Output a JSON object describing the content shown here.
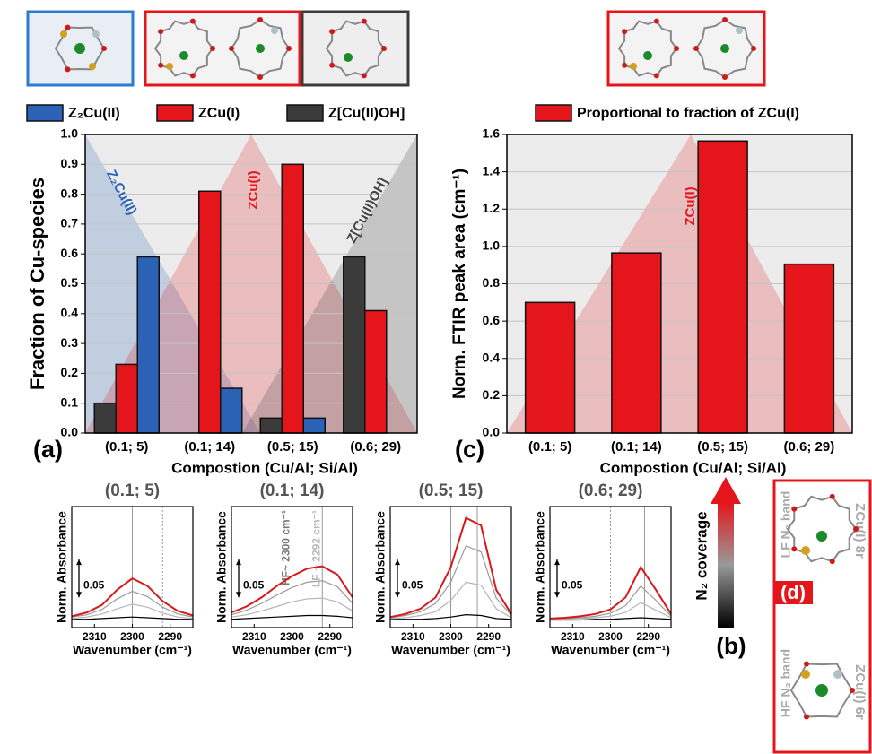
{
  "chart_data": [
    {
      "type": "bar",
      "panel_label": "(a)",
      "x_label": "Compostion (Cu/Al; Si/Al)",
      "y_label": "Fraction of Cu-species",
      "categories": [
        "(0.1; 5)",
        "(0.1; 14)",
        "(0.5; 15)",
        "(0.6; 29)"
      ],
      "series": [
        {
          "name": "Z₂Cu(II)",
          "color": "#2b62b5",
          "values": [
            0.59,
            0.15,
            0.05,
            null
          ]
        },
        {
          "name": "ZCu(I)",
          "color": "#e4151b",
          "values": [
            0.23,
            0.81,
            0.9,
            0.41
          ]
        },
        {
          "name": "Z[Cu(II)OH]",
          "color": "#3b3b3b",
          "values": [
            0.1,
            null,
            0.05,
            0.59
          ]
        }
      ],
      "annotations": [
        "Z₂Cu(II)",
        "ZCu(I)",
        "Z[Cu(II)OH]"
      ],
      "ylim": [
        0,
        1
      ],
      "yticks": [
        {
          "value": 0,
          "label": "0.0"
        },
        0.1,
        0.2,
        0.3,
        0.4,
        0.5,
        0.6,
        0.7,
        0.8,
        0.9,
        {
          "value": 1,
          "label": "1.0"
        }
      ],
      "grid": true
    },
    {
      "type": "bar",
      "panel_label": "(c)",
      "x_label": "Compostion (Cu/Al; Si/Al)",
      "y_label": "Norm. FTIR peak area (cm⁻¹)",
      "categories": [
        "(0.1; 5)",
        "(0.1; 14)",
        "(0.5; 15)",
        "(0.6; 29)"
      ],
      "series": [
        {
          "name": "Proportional to fraction of ZCu(I)",
          "color": "#e4151b",
          "values": [
            0.7,
            0.965,
            1.565,
            0.905
          ]
        }
      ],
      "annotations": [
        "ZCu(I)"
      ],
      "ylim": [
        0,
        1.6
      ],
      "yticks": [
        {
          "value": 0,
          "label": "0.0"
        },
        0.2,
        0.4,
        0.6,
        0.8,
        {
          "value": 1,
          "label": "1.0"
        },
        1.2,
        1.4,
        1.6
      ],
      "grid": true
    },
    {
      "type": "line",
      "title": "(0.1; 5)",
      "x_label": "Wavenumber (cm⁻¹)",
      "y_label": "Norm. Absorbance",
      "scale_bar": 0.05,
      "x": [
        2316,
        2312,
        2308,
        2304,
        2300,
        2296,
        2292,
        2288,
        2284
      ],
      "xlim": [
        2316,
        2284
      ],
      "xticks": [
        2310,
        2300,
        2290
      ],
      "ylim": [
        -0.01,
        0.15
      ],
      "vlines": [
        {
          "x": 2300,
          "style": "solid"
        },
        {
          "x": 2292,
          "style": "dotted"
        }
      ],
      "series": [
        {
          "color": "#d7191c",
          "values": [
            0.005,
            0.01,
            0.02,
            0.04,
            0.055,
            0.045,
            0.025,
            0.012,
            0.006
          ]
        },
        {
          "color": "#9a9a9a",
          "values": [
            0.004,
            0.007,
            0.014,
            0.028,
            0.038,
            0.031,
            0.017,
            0.008,
            0.004
          ]
        },
        {
          "color": "#b5b5b5",
          "values": [
            0.002,
            0.004,
            0.008,
            0.015,
            0.021,
            0.017,
            0.009,
            0.004,
            0.002
          ]
        },
        {
          "color": "#000000",
          "values": [
            0.001,
            0.001,
            0.002,
            0.003,
            0.004,
            0.003,
            0.002,
            0.001,
            0.001
          ]
        }
      ]
    },
    {
      "type": "line",
      "title": "(0.1; 14)",
      "x_label": "Wavenumber (cm⁻¹)",
      "y_label": "Norm. Absorbance",
      "scale_bar": 0.05,
      "x": [
        2316,
        2312,
        2308,
        2304,
        2300,
        2296,
        2292,
        2288,
        2284
      ],
      "xlim": [
        2316,
        2284
      ],
      "xticks": [
        2310,
        2300,
        2290
      ],
      "ylim": [
        -0.01,
        0.15
      ],
      "vlines": [
        {
          "x": 2300,
          "style": "solid",
          "label": "HF~ 2300 cm⁻¹"
        },
        {
          "x": 2292,
          "style": "solid",
          "label": "LF ~ 2292 cm⁻¹"
        }
      ],
      "series": [
        {
          "color": "#d7191c",
          "values": [
            0.01,
            0.018,
            0.03,
            0.045,
            0.058,
            0.068,
            0.071,
            0.06,
            0.03
          ]
        },
        {
          "color": "#9a9a9a",
          "values": [
            0.007,
            0.013,
            0.022,
            0.033,
            0.043,
            0.05,
            0.052,
            0.044,
            0.022
          ]
        },
        {
          "color": "#b5b5b5",
          "values": [
            0.004,
            0.007,
            0.012,
            0.018,
            0.024,
            0.028,
            0.029,
            0.024,
            0.012
          ]
        },
        {
          "color": "#000000",
          "values": [
            0.001,
            0.002,
            0.003,
            0.004,
            0.005,
            0.006,
            0.006,
            0.005,
            0.003
          ]
        }
      ]
    },
    {
      "type": "line",
      "title": "(0.5; 15)",
      "x_label": "Wavenumber (cm⁻¹)",
      "y_label": "Norm. Absorbance",
      "scale_bar": 0.05,
      "x": [
        2316,
        2312,
        2308,
        2304,
        2300,
        2296,
        2292,
        2288,
        2284
      ],
      "xlim": [
        2316,
        2284
      ],
      "xticks": [
        2310,
        2300,
        2290
      ],
      "ylim": [
        -0.01,
        0.15
      ],
      "vlines": [
        {
          "x": 2300,
          "style": "solid"
        },
        {
          "x": 2293,
          "style": "solid"
        }
      ],
      "series": [
        {
          "color": "#d7191c",
          "values": [
            0.004,
            0.008,
            0.015,
            0.03,
            0.07,
            0.135,
            0.125,
            0.04,
            0.008
          ]
        },
        {
          "color": "#9a9a9a",
          "values": [
            0.003,
            0.006,
            0.011,
            0.022,
            0.05,
            0.098,
            0.09,
            0.029,
            0.006
          ]
        },
        {
          "color": "#b5b5b5",
          "values": [
            0.002,
            0.003,
            0.006,
            0.011,
            0.026,
            0.05,
            0.046,
            0.015,
            0.003
          ]
        },
        {
          "color": "#000000",
          "values": [
            0.001,
            0.001,
            0.001,
            0.002,
            0.004,
            0.007,
            0.006,
            0.002,
            0.001
          ]
        }
      ]
    },
    {
      "type": "line",
      "title": "(0.6; 29)",
      "x_label": "Wavenumber (cm⁻¹)",
      "y_label": "Norm. Absorbance",
      "scale_bar": 0.05,
      "x": [
        2316,
        2312,
        2308,
        2304,
        2300,
        2296,
        2292,
        2288,
        2284
      ],
      "xlim": [
        2316,
        2284
      ],
      "xticks": [
        2310,
        2300,
        2290
      ],
      "ylim": [
        -0.01,
        0.15
      ],
      "vlines": [
        {
          "x": 2300,
          "style": "dotted"
        },
        {
          "x": 2291,
          "style": "solid"
        }
      ],
      "series": [
        {
          "color": "#d7191c",
          "values": [
            0.002,
            0.003,
            0.005,
            0.008,
            0.014,
            0.03,
            0.07,
            0.04,
            0.008
          ]
        },
        {
          "color": "#9a9a9a",
          "values": [
            0.001,
            0.002,
            0.003,
            0.005,
            0.009,
            0.019,
            0.045,
            0.026,
            0.005
          ]
        },
        {
          "color": "#b5b5b5",
          "values": [
            0.001,
            0.001,
            0.002,
            0.003,
            0.005,
            0.01,
            0.023,
            0.013,
            0.003
          ]
        },
        {
          "color": "#000000",
          "values": [
            0,
            0,
            0,
            0.001,
            0.001,
            0.002,
            0.003,
            0.002,
            0.001
          ]
        }
      ]
    }
  ],
  "figure": {
    "panel_b_label": "(b)",
    "colorbar_label": "N₂ coverage",
    "panel_d": {
      "label": "(d)",
      "top": {
        "band": "LF N₂ band",
        "site": "ZCu(I) 8r"
      },
      "bottom": {
        "band": "HF N₂ band",
        "site": "ZCu(I) 6r"
      }
    }
  }
}
